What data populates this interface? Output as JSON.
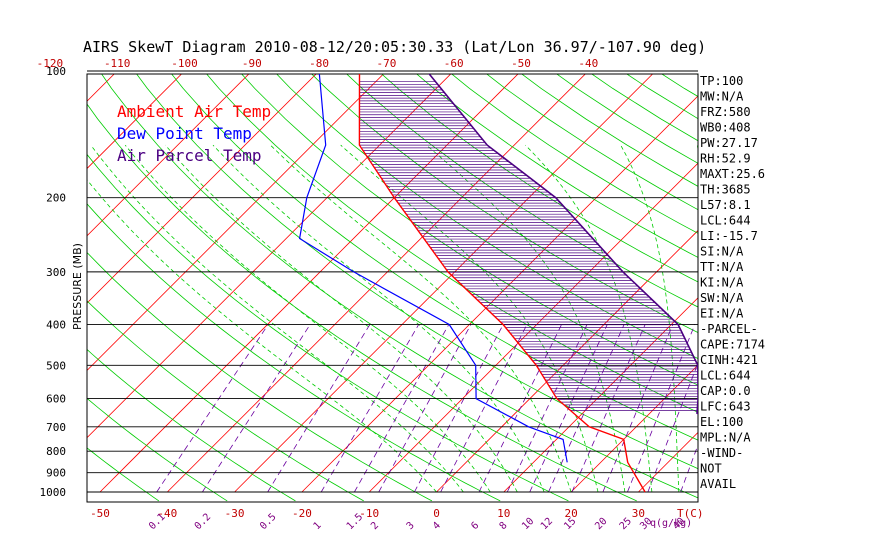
{
  "chart_data": {
    "type": "line",
    "title": "AIRS SkewT Diagram 2010-08-12/20:05:30.33 (Lat/Lon 36.97/-107.90 deg)",
    "ylabel": "PRESSURE (MB)",
    "xlabel_bottom": "T(C)",
    "mixing_ratio_unit": "q(g/kg)",
    "y_scale": "log",
    "ylim": [
      1000,
      100
    ],
    "xlim_bottom": [
      -50,
      40
    ],
    "pressure_ticks": [
      "100",
      "200",
      "300",
      "400",
      "500",
      "600",
      "700",
      "800",
      "900",
      "1000"
    ],
    "top_temp_ticks": [
      "-120",
      "-110",
      "-100",
      "-90",
      "-80",
      "-70",
      "-60",
      "-50",
      "-40"
    ],
    "bottom_temp_ticks": [
      "-50",
      "-40",
      "-30",
      "-20",
      "-10",
      "0",
      "10",
      "20",
      "30"
    ],
    "mixing_ratio_labels": [
      "0.1",
      "0.2",
      "0.5",
      "1",
      "1.5",
      "2",
      "3",
      "4",
      "6",
      "8",
      "10",
      "12",
      "15",
      "20",
      "25",
      "30",
      "40"
    ],
    "legend": [
      {
        "name": "Ambient Air Temp",
        "color": "#ff0000"
      },
      {
        "name": "Dew Point Temp",
        "color": "#0000ff"
      },
      {
        "name": "Air Parcel Temp",
        "color": "#4b0082"
      }
    ],
    "series": [
      {
        "name": "Ambient Air Temp",
        "color": "#ff0000",
        "points": [
          [
            1000,
            31
          ],
          [
            850,
            24
          ],
          [
            750,
            20
          ],
          [
            700,
            13
          ],
          [
            600,
            4
          ],
          [
            500,
            -4
          ],
          [
            400,
            -15
          ],
          [
            300,
            -31
          ],
          [
            200,
            -50
          ],
          [
            150,
            -63
          ],
          [
            100,
            -74
          ]
        ]
      },
      {
        "name": "Dew Point Temp",
        "color": "#0000ff",
        "points": [
          [
            850,
            15
          ],
          [
            750,
            11
          ],
          [
            700,
            4
          ],
          [
            600,
            -8
          ],
          [
            500,
            -13
          ],
          [
            400,
            -23
          ],
          [
            300,
            -45
          ],
          [
            250,
            -58
          ],
          [
            200,
            -63
          ],
          [
            150,
            -68
          ],
          [
            100,
            -80
          ]
        ]
      },
      {
        "name": "Air Parcel Temp",
        "color": "#4b0082",
        "points": [
          [
            750,
            38
          ],
          [
            650,
            27
          ],
          [
            600,
            25
          ],
          [
            500,
            20
          ],
          [
            400,
            11
          ],
          [
            300,
            -5
          ],
          [
            200,
            -26
          ],
          [
            150,
            -44
          ],
          [
            100,
            -64
          ]
        ]
      }
    ],
    "info_panel": [
      "TP:100",
      "MW:N/A",
      "FRZ:580",
      "WB0:408",
      "PW:27.17",
      "RH:52.9",
      "MAXT:25.6",
      "TH:3685",
      "L57:8.1",
      "LCL:644",
      "LI:-15.7",
      "SI:N/A",
      "TT:N/A",
      "KI:N/A",
      "SW:N/A",
      "EI:N/A",
      "-PARCEL-",
      "CAPE:7174",
      "CINH:421",
      "LCL:644",
      "CAP:0.0",
      "LFC:643",
      "EL:100",
      "MPL:N/A",
      "-WIND-",
      "NOT",
      "AVAIL"
    ]
  }
}
